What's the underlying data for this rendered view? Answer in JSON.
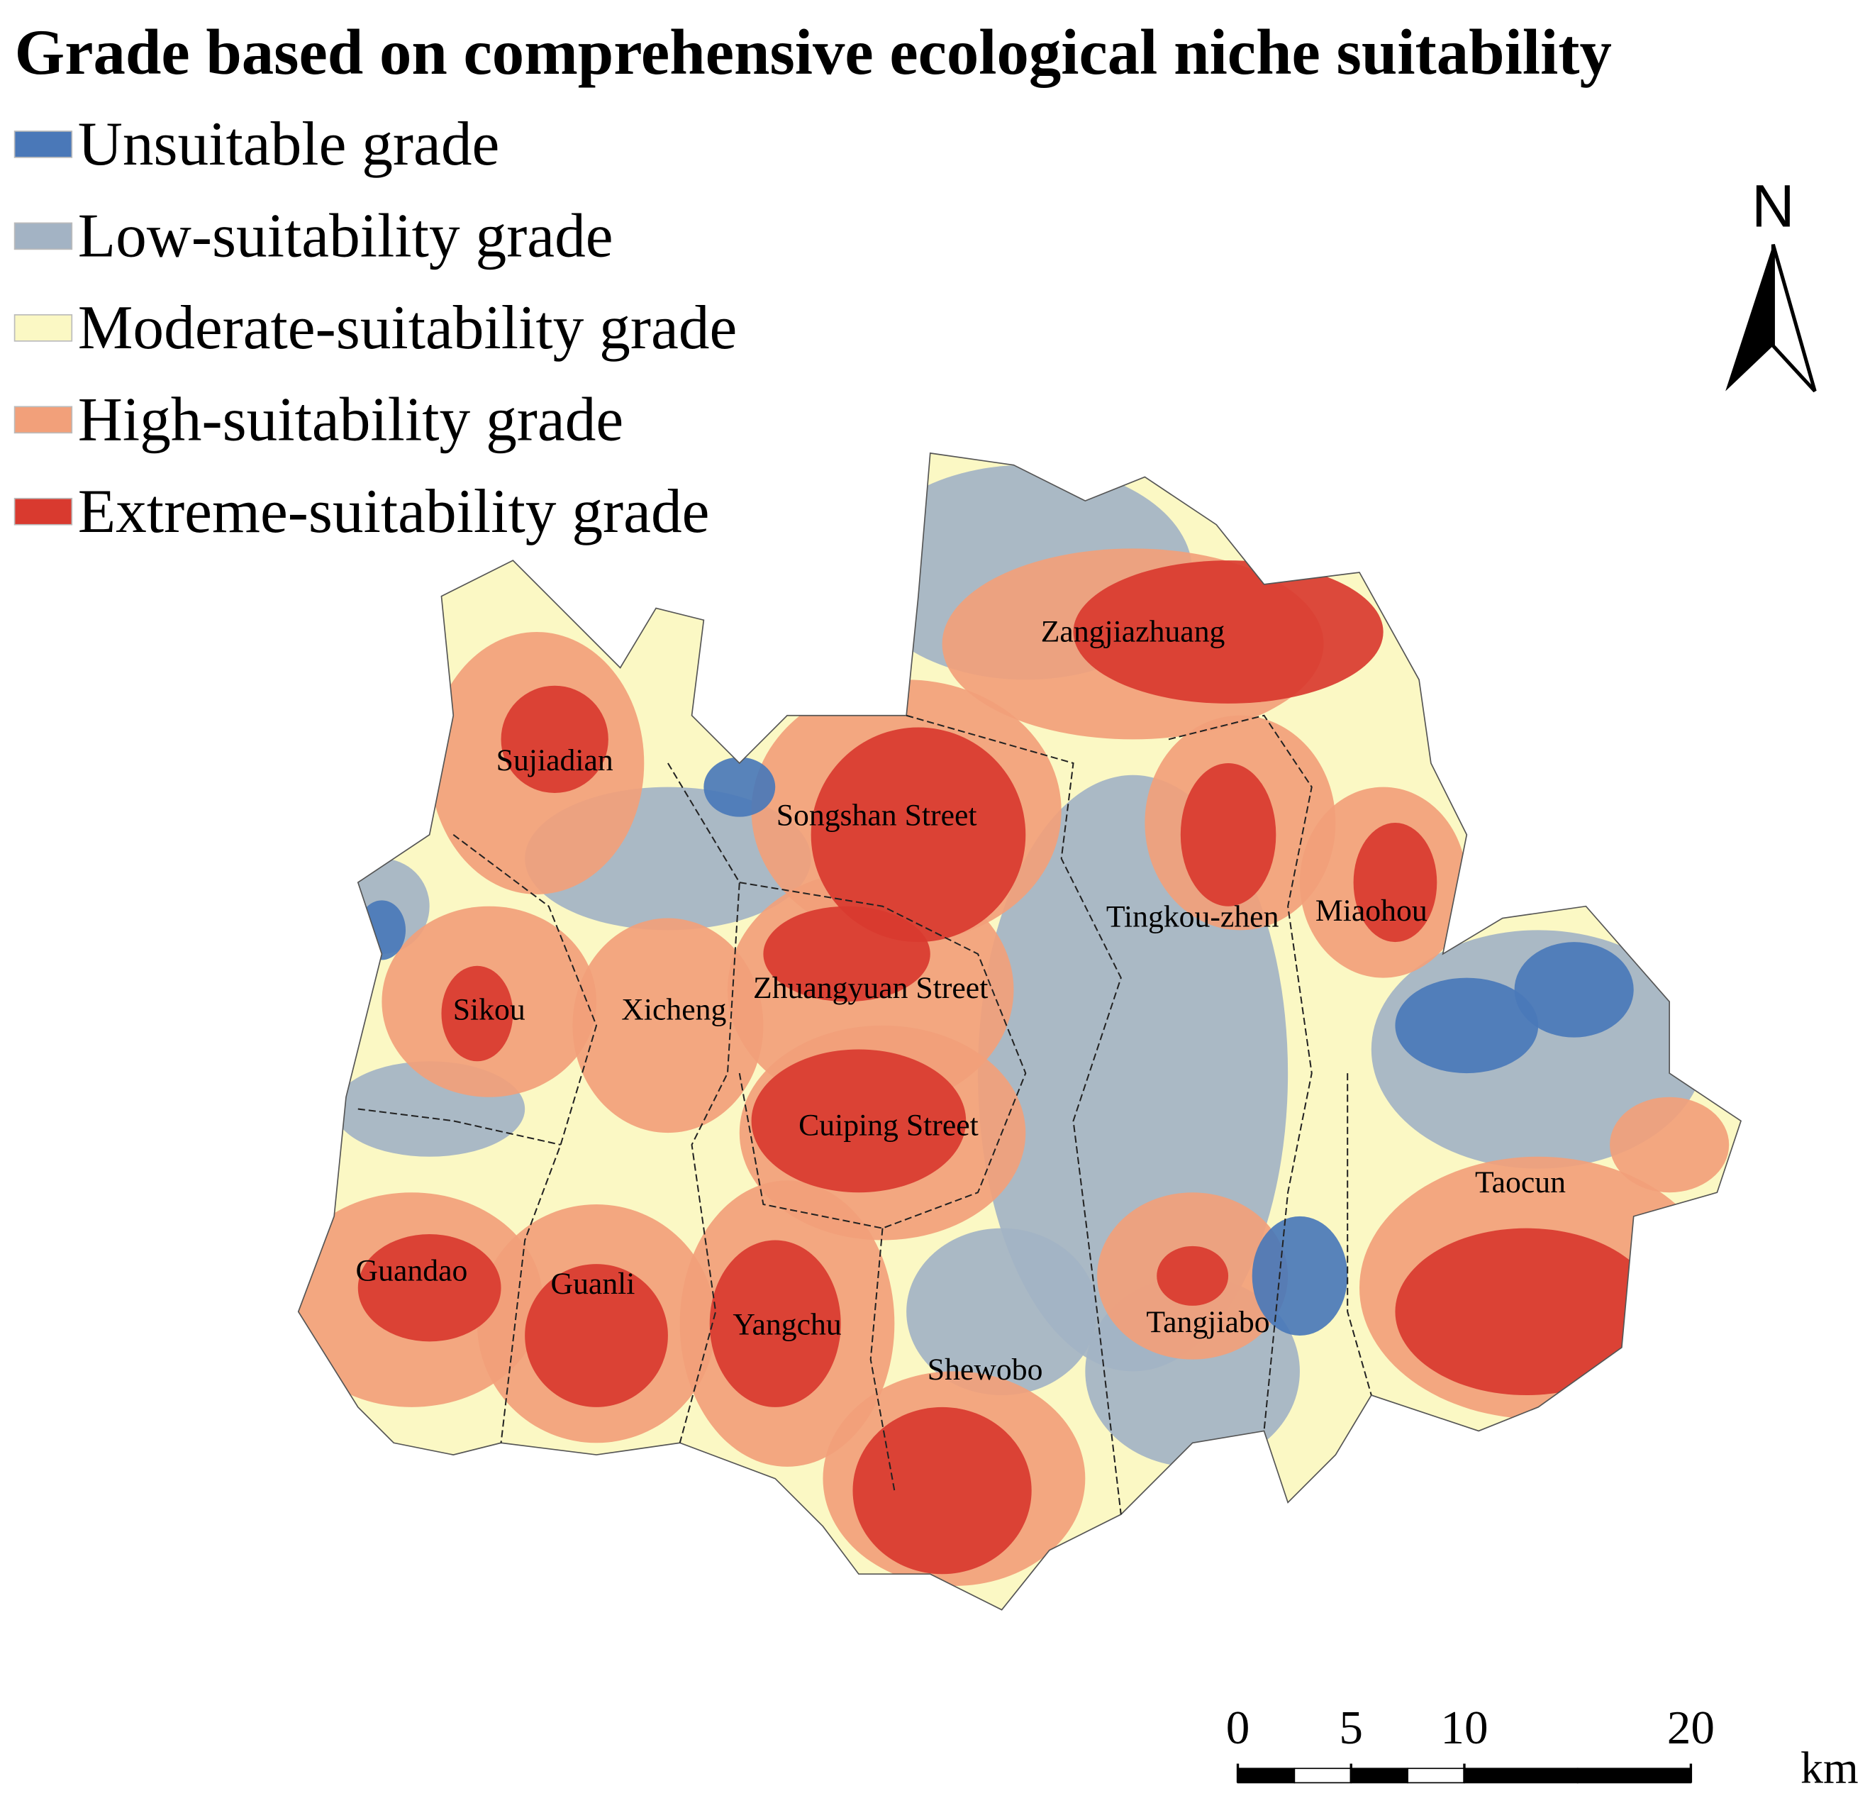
{
  "title": "Grade based on comprehensive ecological niche suitability",
  "legend": [
    {
      "label": "Unsuitable grade",
      "color": "#4a78b8"
    },
    {
      "label": "Low-suitability grade",
      "color": "#a3b3c4"
    },
    {
      "label": "Moderate-suitability grade",
      "color": "#fbf8c4"
    },
    {
      "label": "High-suitability grade",
      "color": "#f2a07a"
    },
    {
      "label": "Extreme-suitability grade",
      "color": "#d93a2f"
    }
  ],
  "places": [
    "Zangjiazhuang",
    "Sujiadian",
    "Songshan Street",
    "Tingkou-zhen",
    "Miaohou",
    "Sikou",
    "Xicheng",
    "Zhuangyuan Street",
    "Cuiping Street",
    "Taocun",
    "Guandao",
    "Guanli",
    "Yangchu",
    "Tangjiabo",
    "Shewobo"
  ],
  "north": "N",
  "scale_bar": {
    "ticks": [
      0,
      5,
      10,
      20
    ],
    "unit": "km"
  }
}
